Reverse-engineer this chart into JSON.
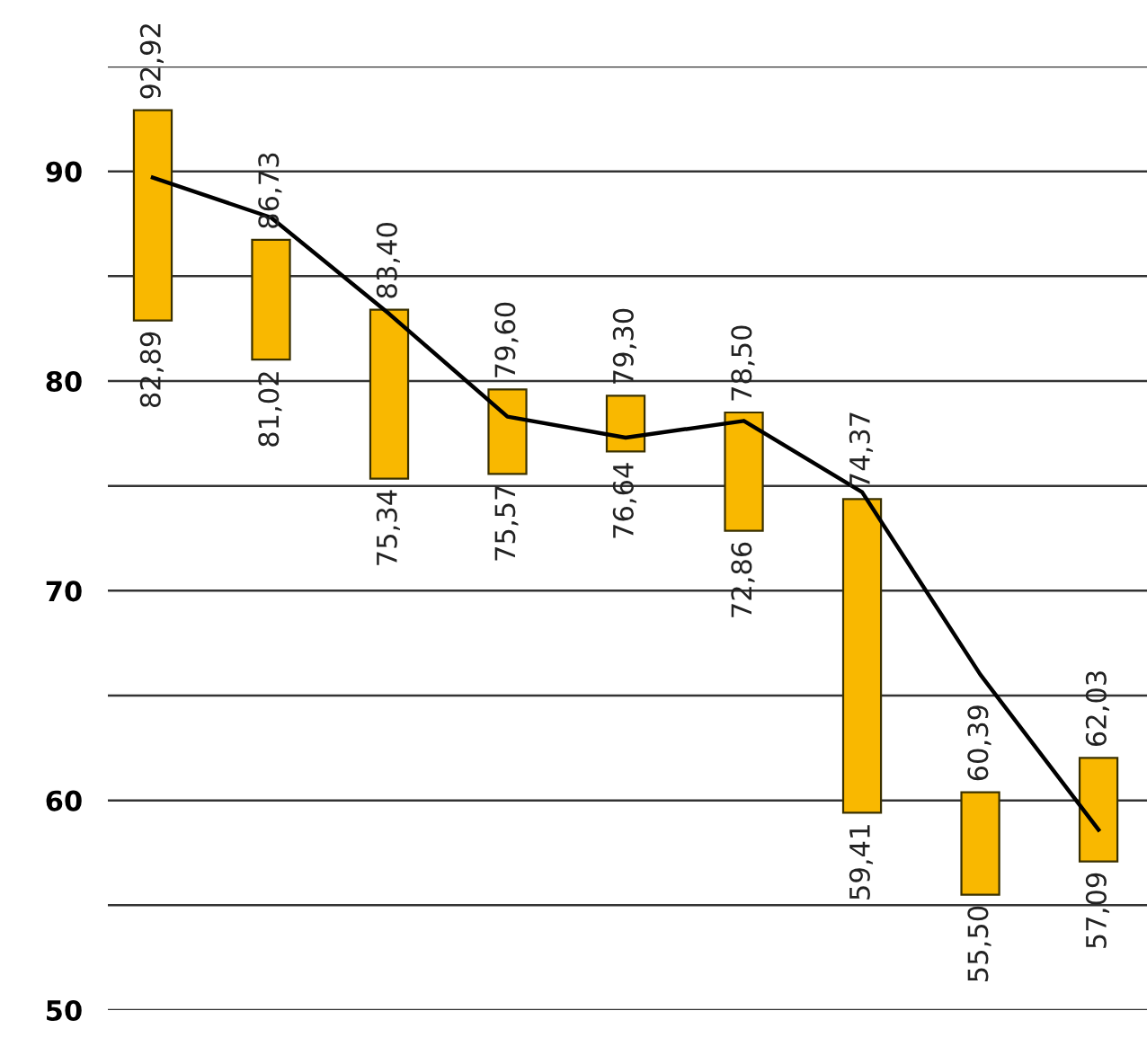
{
  "chart_data": {
    "type": "bar",
    "categories": [
      null,
      null,
      null,
      null,
      null,
      null,
      null,
      null,
      null
    ],
    "ylim": [
      50,
      95
    ],
    "yticks": [
      50,
      {
        "value": 55,
        "label": null
      },
      60,
      {
        "value": 65,
        "label": null
      },
      70,
      {
        "value": 75,
        "label": null
      },
      80,
      {
        "value": 85,
        "label": null
      },
      90,
      {
        "value": 95,
        "label": null
      }
    ],
    "grid": "y",
    "tick_labels": "y",
    "series": [
      {
        "color": "#f9b800",
        "base": [
          82.89,
          81.02,
          75.34,
          75.57,
          76.64,
          72.86,
          59.41,
          55.5,
          57.09
        ],
        "values": [
          10.03,
          5.71,
          8.06,
          4.03,
          2.66,
          5.64,
          14.96,
          4.89,
          4.94
        ]
      },
      {
        "type": "line",
        "color": "#000000",
        "values": [
          89.7,
          87.8,
          83.2,
          78.3,
          77.3,
          78.1,
          74.7,
          66.0,
          58.6
        ]
      }
    ],
    "annotations": [
      "92,92",
      "82,89",
      "86,73",
      "81,02",
      "83,40",
      "75,34",
      "79,60",
      "75,57",
      "79,30",
      "76,64",
      "78,50",
      "72,86",
      "74,37",
      "59,41",
      "60,39",
      "55,50",
      "62,03",
      "57,09"
    ]
  }
}
